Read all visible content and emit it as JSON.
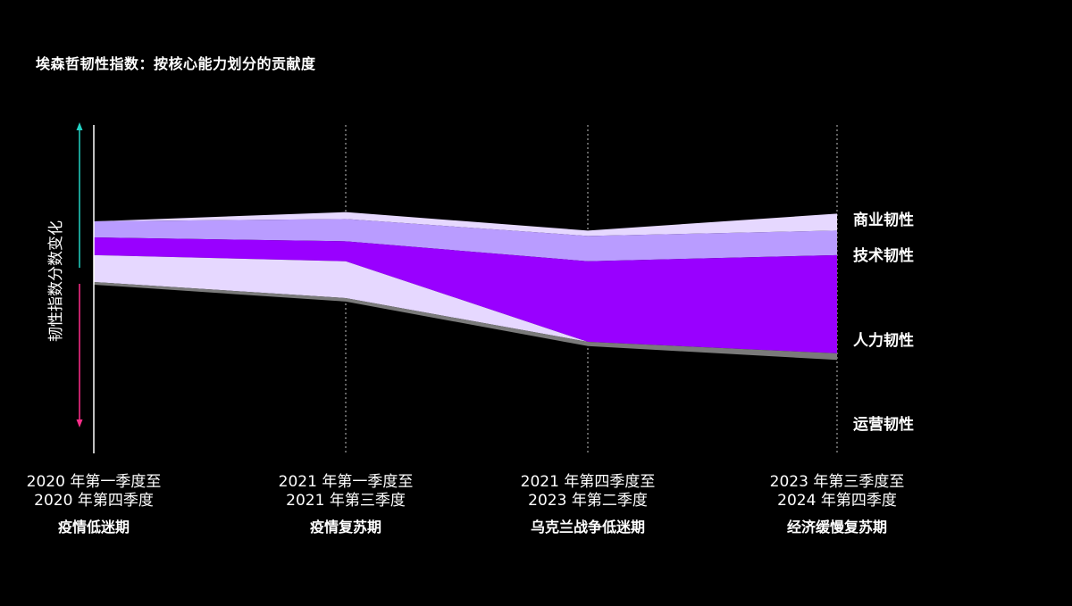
{
  "title": "埃森哲韧性指数：按核心能力划分的贡献度",
  "chart_data": {
    "type": "area",
    "title": "埃森哲韧性指数：按核心能力划分的贡献度",
    "y_axis_label": "韧性指数分数变化",
    "periods": [
      {
        "date": "2020 年第一季度至",
        "date2": "2020 年第四季度",
        "name": "疫情低迷期"
      },
      {
        "date": "2021 年第一季度至",
        "date2": "2021 年第三季度",
        "name": "疫情复苏期"
      },
      {
        "date": "2021 年第四季度至",
        "date2": "2023 年第二季度",
        "name": "乌克兰战争低迷期"
      },
      {
        "date": "2023 年第三季度至",
        "date2": "2024 年第四季度",
        "name": "经济缓慢复苏期"
      }
    ],
    "series": [
      {
        "name": "商业韧性",
        "color": "#e6d8ff",
        "values": [
          0.0,
          0.9,
          0.7,
          2.2
        ],
        "label_row": 0
      },
      {
        "name": "技术韧性",
        "color": "#b99cff",
        "values": [
          2.1,
          2.9,
          3.3,
          3.2
        ],
        "label_row": 1
      },
      {
        "name": "人力韧性",
        "color": "#9900ff",
        "values": [
          2.3,
          2.6,
          10.5,
          12.8
        ],
        "label_row": 2
      },
      {
        "name": "运营韧性",
        "color": "#e6d8ff",
        "values": [
          3.5,
          4.8,
          0.0,
          0.0
        ],
        "label_row": 3
      }
    ],
    "tail": {
      "color": "#7a7a7a",
      "values": [
        0.35,
        0.45,
        0.55,
        0.85
      ]
    },
    "top_start": [
      0.0,
      -1.2,
      1.2,
      -1.0
    ],
    "arrow_colors": {
      "up": "#22d1c3",
      "down": "#ff2e8a"
    },
    "axis_color": "#ffffff",
    "gridline_color": "#bfbfbf"
  }
}
